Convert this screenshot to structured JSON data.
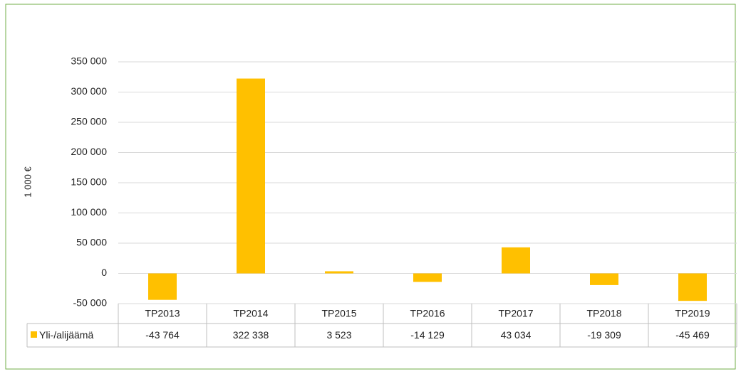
{
  "chart_data": {
    "type": "bar",
    "y_label": "1 000 €",
    "categories": [
      "TP2013",
      "TP2014",
      "TP2015",
      "TP2016",
      "TP2017",
      "TP2018",
      "TP2019"
    ],
    "series": [
      {
        "name": "Yli-/alijäämä",
        "color": "#ffc000",
        "values": [
          -43764,
          322338,
          3523,
          -14129,
          43034,
          -19309,
          -45469
        ],
        "value_labels": [
          "-43 764",
          "322 338",
          "3 523",
          "-14 129",
          "43 034",
          "-19 309",
          "-45 469"
        ]
      }
    ],
    "ylim": [
      -50000,
      350000
    ],
    "yticks": [
      {
        "value": -50000,
        "label": "-50 000"
      },
      0,
      {
        "value": 50000,
        "label": "50 000"
      },
      {
        "value": 100000,
        "label": "100 000"
      },
      {
        "value": 150000,
        "label": "150 000"
      },
      {
        "value": 200000,
        "label": "200 000"
      },
      {
        "value": 250000,
        "label": "250 000"
      },
      {
        "value": 300000,
        "label": "300 000"
      },
      {
        "value": 350000,
        "label": "350 000"
      }
    ],
    "grid": true
  }
}
